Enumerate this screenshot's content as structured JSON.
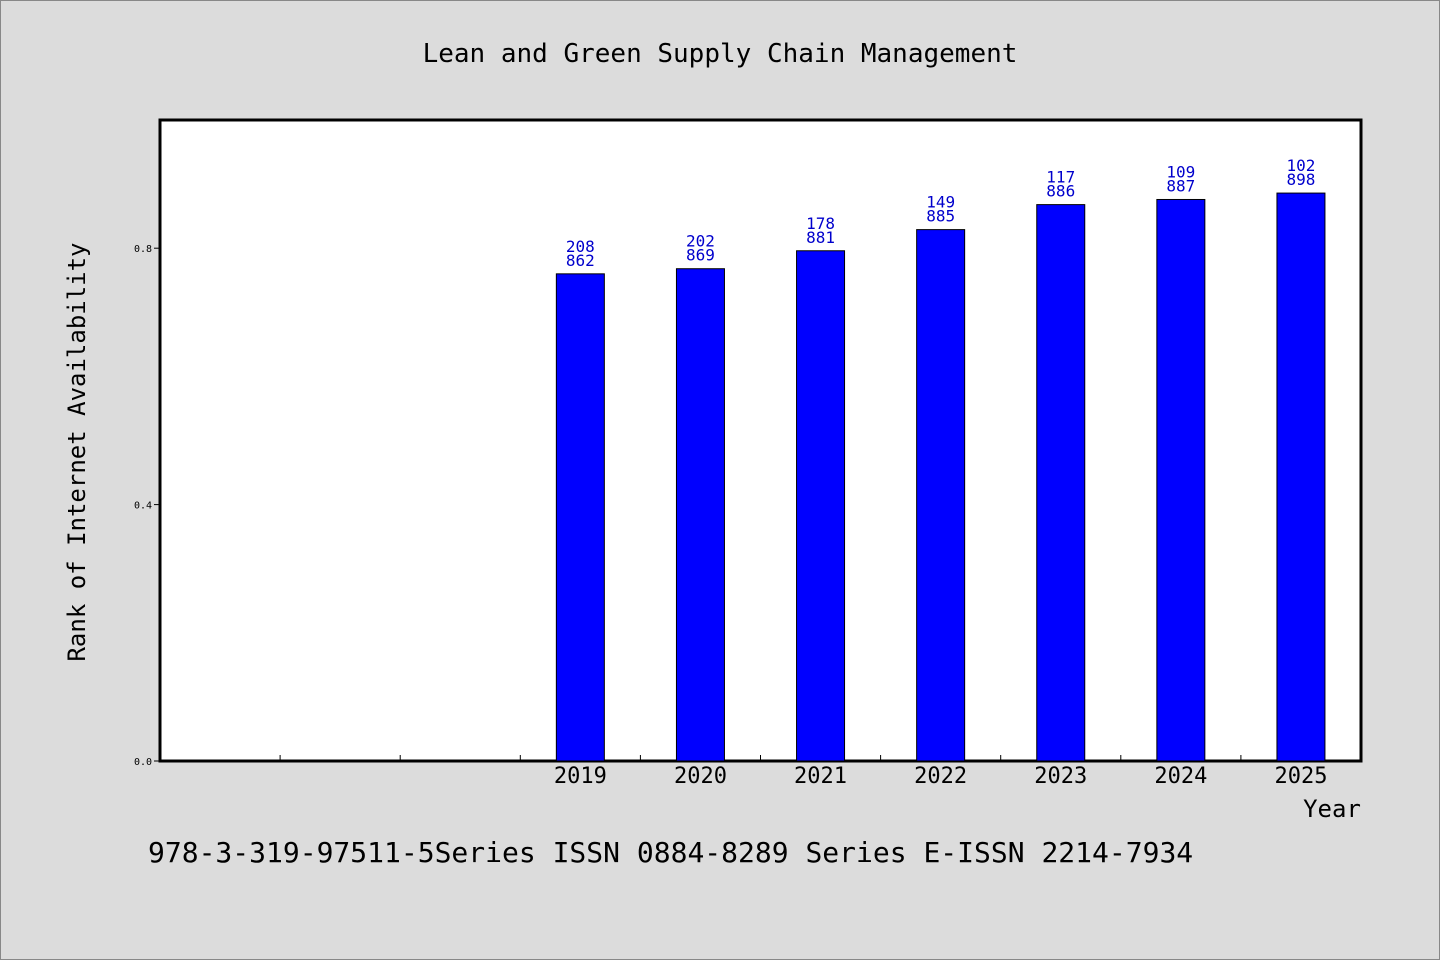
{
  "colors": {
    "background": "#dcdcdc",
    "plot_background": "#ffffff",
    "bar_fill": "#0000ff",
    "bar_stroke": "#000000",
    "label_color": "#0000cc"
  },
  "footer": "978-3-319-97511-5Series ISSN 0884-8289 Series E-ISSN 2214-7934",
  "chart_data": {
    "type": "bar",
    "title": "Lean and Green Supply Chain Management",
    "xlabel": "Year",
    "ylabel": "Rank of Internet Availability",
    "categories": [
      "",
      "",
      "",
      "2019",
      "2020",
      "2021",
      "2022",
      "2023",
      "2024",
      "2025"
    ],
    "values": [
      null,
      null,
      null,
      0.76,
      0.768,
      0.796,
      0.829,
      0.868,
      0.876,
      0.886
    ],
    "data_labels": [
      null,
      null,
      null,
      [
        "208",
        "862"
      ],
      [
        "202",
        "869"
      ],
      [
        "178",
        "881"
      ],
      [
        "149",
        "885"
      ],
      [
        "117",
        "886"
      ],
      [
        "109",
        "887"
      ],
      [
        "102",
        "898"
      ]
    ],
    "ylim": [
      0,
      1.0
    ],
    "yticks": [
      0.0,
      0.4,
      0.8
    ],
    "ytick_labels": [
      "0.0",
      "0.4",
      "0.8"
    ],
    "grid": false,
    "legend": "none"
  }
}
